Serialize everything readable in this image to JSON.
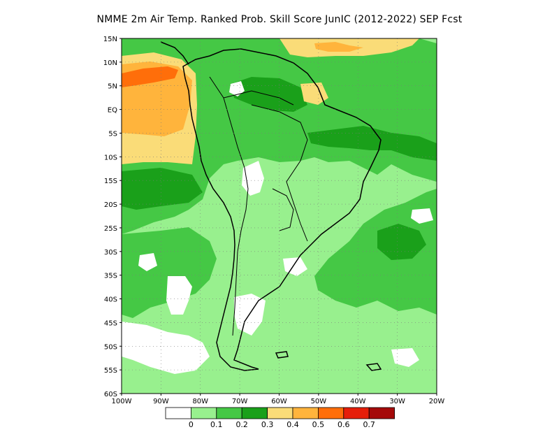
{
  "title": "NMME  2m Air Temp. Ranked Prob. Skill Score JunIC (2012-2022) SEP Fcst",
  "lat_labels": [
    "15N",
    "10N",
    "5N",
    "EQ",
    "5S",
    "10S",
    "15S",
    "20S",
    "25S",
    "30S",
    "35S",
    "40S",
    "45S",
    "50S",
    "55S",
    "60S"
  ],
  "lon_labels": [
    "100W",
    "90W",
    "80W",
    "70W",
    "60W",
    "50W",
    "40W",
    "30W",
    "20W"
  ],
  "map_extent": {
    "lon_min": -100,
    "lon_max": -20,
    "lat_min": -60,
    "lat_max": 15
  },
  "legend": {
    "labels": [
      "0",
      "0.1",
      "0.2",
      "0.3",
      "0.4",
      "0.5",
      "0.6",
      "0.7"
    ],
    "colors": [
      "#ffffff",
      "#98f08e",
      "#45c845",
      "#1aa01a",
      "#fadc78",
      "#ffb43c",
      "#ff6e0a",
      "#e61e0a",
      "#a50a0a"
    ]
  }
}
